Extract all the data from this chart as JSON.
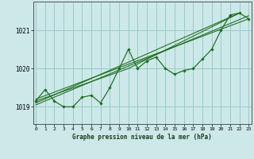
{
  "xlabel": "Graphe pression niveau de la mer (hPa)",
  "background_color": "#cce8e8",
  "grid_color": "#99cccc",
  "line_color": "#1a6b1a",
  "x_ticks": [
    0,
    1,
    2,
    3,
    4,
    5,
    6,
    7,
    8,
    9,
    10,
    11,
    12,
    13,
    14,
    15,
    16,
    17,
    18,
    19,
    20,
    21,
    22,
    23
  ],
  "y_ticks": [
    1019,
    1020,
    1021
  ],
  "ylim": [
    1018.55,
    1021.75
  ],
  "xlim": [
    -0.3,
    23.3
  ],
  "main_series": [
    1019.15,
    1019.45,
    1019.15,
    1019.0,
    1019.0,
    1019.25,
    1019.3,
    1019.1,
    1019.5,
    1020.0,
    1020.5,
    1020.0,
    1020.2,
    1020.3,
    1020.0,
    1019.85,
    1019.95,
    1020.0,
    1020.25,
    1020.5,
    1021.0,
    1021.4,
    1021.45,
    1021.3
  ],
  "trend_lines": [
    {
      "x": [
        0,
        22
      ],
      "y": [
        1019.1,
        1021.45
      ]
    },
    {
      "x": [
        0,
        23
      ],
      "y": [
        1019.2,
        1021.3
      ]
    },
    {
      "x": [
        0,
        10,
        22
      ],
      "y": [
        1019.15,
        1020.0,
        1021.45
      ]
    },
    {
      "x": [
        0,
        23
      ],
      "y": [
        1019.05,
        1021.38
      ]
    }
  ]
}
